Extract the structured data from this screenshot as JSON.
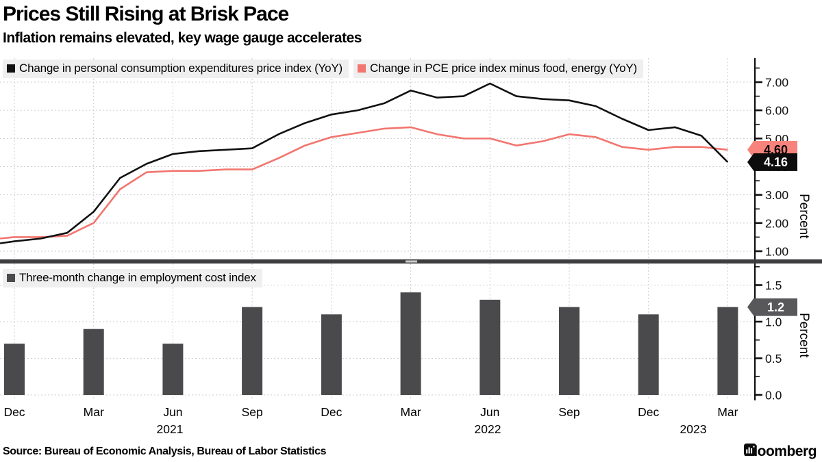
{
  "header": {
    "title": "Prices Still Rising at Brisk Pace",
    "subtitle": "Inflation remains elevated, key wage gauge accelerates"
  },
  "footer": {
    "source": "Source: Bureau of Economic Analysis, Bureau of Labor Statistics",
    "brand": "Bloomberg"
  },
  "colors": {
    "pce_line": "#111111",
    "core_line": "#f2756f",
    "core_badge_bg": "#f8837c",
    "pce_badge_bg": "#0c0c0c",
    "bar_fill": "#4a4a4c",
    "bar_badge_bg": "#58585a",
    "grid": "#cccccc",
    "axis": "#111111",
    "legend_bg": "#efefef",
    "separator": "#3d3d3f"
  },
  "chart_data": [
    {
      "type": "line",
      "ylabel": "Percent",
      "ylim": [
        0.7,
        7.85
      ],
      "grid": true,
      "legend_position": "top-left",
      "yticks": [
        "1.00",
        "2.00",
        "3.00",
        "4.00",
        "5.00",
        "6.00",
        "7.00"
      ],
      "legend": [
        {
          "label": "Change in personal consumption expenditures price index (YoY)",
          "color": "#111111"
        },
        {
          "label": "Change in PCE price index minus food, energy (YoY)",
          "color": "#f2756f"
        }
      ],
      "x": [
        "Dec 2020",
        "Jan 2021",
        "Feb 2021",
        "Mar 2021",
        "Apr 2021",
        "May 2021",
        "Jun 2021",
        "Jul 2021",
        "Aug 2021",
        "Sep 2021",
        "Oct 2021",
        "Nov 2021",
        "Dec 2021",
        "Jan 2022",
        "Feb 2022",
        "Mar 2022",
        "Apr 2022",
        "May 2022",
        "Jun 2022",
        "Jul 2022",
        "Aug 2022",
        "Sep 2022",
        "Oct 2022",
        "Nov 2022",
        "Dec 2022",
        "Jan 2023",
        "Feb 2023",
        "Mar 2023"
      ],
      "left_edge": {
        "pce": 1.28,
        "core": 1.45
      },
      "series": [
        {
          "name": "Change in PCE price index minus food, energy (YoY)",
          "color": "#f2756f",
          "values": [
            1.5,
            1.5,
            1.55,
            2.0,
            3.2,
            3.8,
            3.85,
            3.85,
            3.9,
            3.9,
            4.3,
            4.75,
            5.05,
            5.2,
            5.35,
            5.4,
            5.15,
            5.0,
            5.0,
            4.75,
            4.9,
            5.15,
            5.05,
            4.7,
            4.6,
            4.7,
            4.7,
            4.6
          ],
          "end_label": "4.60"
        },
        {
          "name": "Change in personal consumption expenditures price index (YoY)",
          "color": "#111111",
          "values": [
            1.35,
            1.45,
            1.65,
            2.4,
            3.6,
            4.1,
            4.45,
            4.55,
            4.6,
            4.65,
            5.15,
            5.55,
            5.85,
            6.0,
            6.25,
            6.7,
            6.45,
            6.5,
            6.95,
            6.5,
            6.4,
            6.35,
            6.15,
            5.7,
            5.3,
            5.4,
            5.1,
            4.16
          ],
          "end_label": "4.16"
        }
      ],
      "badges": [
        {
          "text": "4.60",
          "value": 4.6,
          "bg": "#f8837c",
          "fg": "#000000"
        },
        {
          "text": "4.16",
          "value": 4.16,
          "bg": "#0c0c0c",
          "fg": "#ffffff"
        }
      ]
    },
    {
      "type": "bar",
      "ylabel": "Percent",
      "ylim": [
        0,
        1.8
      ],
      "grid": true,
      "legend_position": "top-left",
      "yticks": [
        "0.0",
        "0.5",
        "1.0",
        "1.5"
      ],
      "legend": [
        {
          "label": "Three-month change in employment cost index",
          "color": "#4a4a4c"
        }
      ],
      "categories": [
        "Dec 2020",
        "Mar 2021",
        "Jun 2021",
        "Sep 2021",
        "Dec 2021",
        "Mar 2022",
        "Jun 2022",
        "Sep 2022",
        "Dec 2022",
        "Mar 2023"
      ],
      "values": [
        0.7,
        0.9,
        0.7,
        1.2,
        1.1,
        1.4,
        1.3,
        1.2,
        1.1,
        1.2
      ],
      "badges": [
        {
          "text": "1.2",
          "value": 1.2,
          "bg": "#58585a",
          "fg": "#ffffff"
        }
      ],
      "xtick_months": [
        "Dec",
        "Mar",
        "Jun",
        "Sep",
        "Dec",
        "Mar",
        "Jun",
        "Sep",
        "Dec",
        "Mar"
      ],
      "year_labels": [
        {
          "text": "2021",
          "x": 248
        },
        {
          "text": "2022",
          "x": 712
        },
        {
          "text": "2023",
          "x": 1012
        }
      ]
    }
  ]
}
